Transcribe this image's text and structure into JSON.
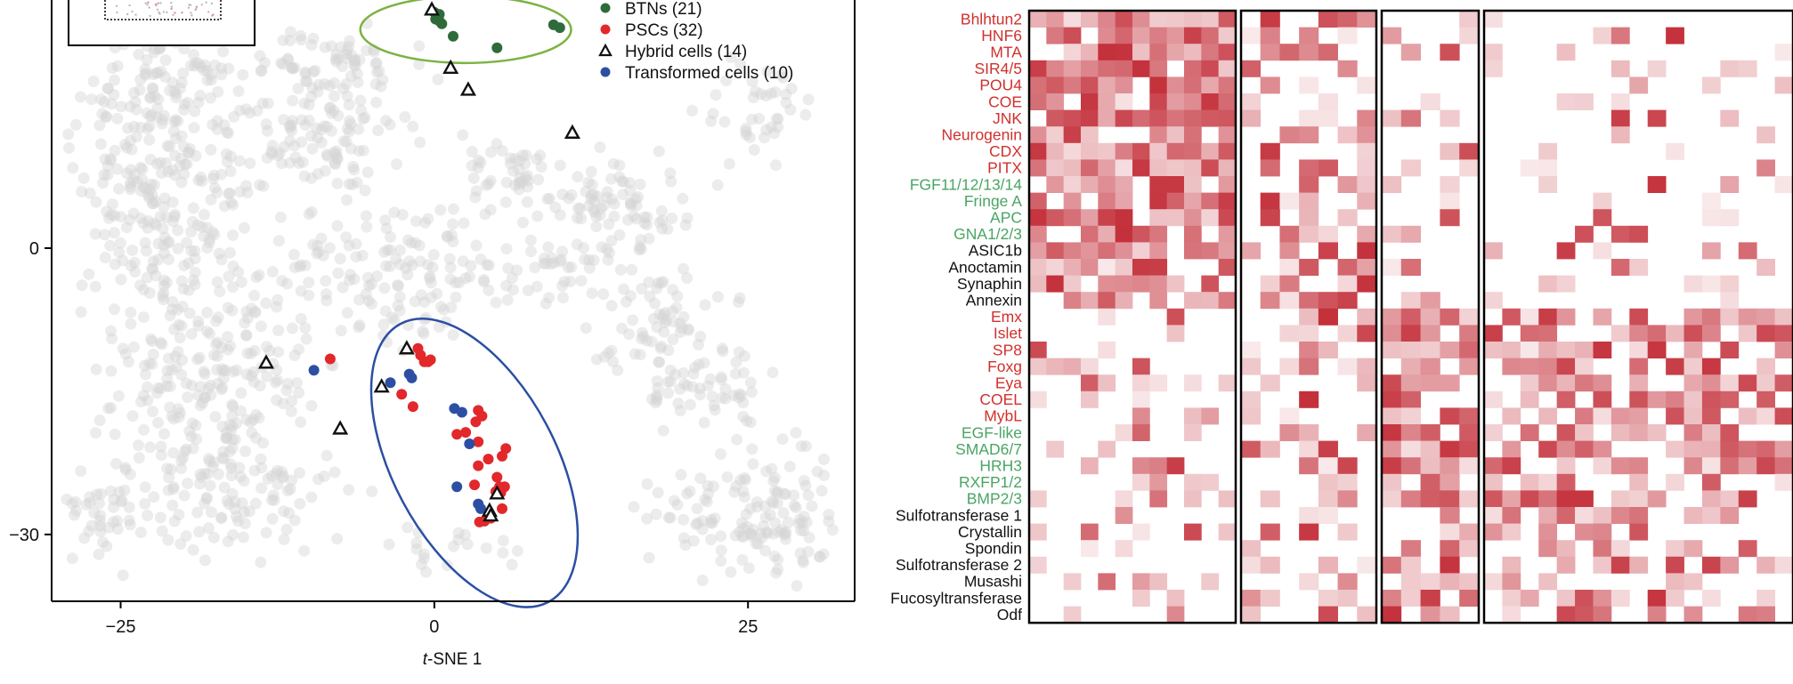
{
  "colors": {
    "btn": "#2e6b3a",
    "psc": "#e2282b",
    "transformed": "#2c4fa3",
    "background_cells": "#d4d4d4",
    "green_ellipse": "#7cb342",
    "blue_ellipse": "#2c4fa3",
    "heat_max": "#c0242f",
    "label_red": "#d0312d",
    "label_green": "#4aa564",
    "label_black": "#111111"
  },
  "chart_data": [
    {
      "type": "scatter",
      "xlabel": "t-SNE 1",
      "ylabel": "",
      "xlim": [
        -30.5,
        33.5
      ],
      "ylim": [
        -37,
        26
      ],
      "xticks": [
        -25,
        0,
        25
      ],
      "xtick_labels": [
        "−25",
        "0",
        "25"
      ],
      "yticks": [
        0,
        -30
      ],
      "ytick_labels": [
        "0",
        "−30"
      ],
      "grid": false,
      "legend_position": "top-right",
      "legend": [
        {
          "label": "BTNs (21)",
          "marker": "circle",
          "color": "#2e6b3a"
        },
        {
          "label": "PSCs (32)",
          "marker": "circle",
          "color": "#e2282b"
        },
        {
          "label": "Hybrid cells (14)",
          "marker": "triangle-open",
          "color": "#111111"
        },
        {
          "label": "Transformed cells (10)",
          "marker": "circle",
          "color": "#2c4fa3"
        }
      ],
      "ellipses": [
        {
          "group": "BTNs",
          "cx": 2.5,
          "cy": 22.9,
          "rx": 8.4,
          "ry": 3.5,
          "angle": 0,
          "color": "#7cb342"
        },
        {
          "group": "Transformed/PSCs",
          "cx": 3.2,
          "cy": -22.5,
          "rx": 6.5,
          "ry": 16.5,
          "angle": -28,
          "color": "#2c4fa3"
        }
      ],
      "series": [
        {
          "name": "BTNs (21)",
          "points": [
            [
              0.0,
              24.7
            ],
            [
              0.4,
              24.5
            ],
            [
              0.1,
              24.0
            ],
            [
              0.4,
              23.8
            ],
            [
              1.5,
              22.2
            ],
            [
              5.0,
              21.0
            ],
            [
              9.5,
              23.4
            ],
            [
              10.0,
              23.1
            ],
            [
              0.6,
              23.5
            ]
          ]
        },
        {
          "name": "PSCs (32)",
          "points": [
            [
              -1.3,
              -10.5
            ],
            [
              -1.1,
              -11.2
            ],
            [
              -0.8,
              -11.9
            ],
            [
              -0.3,
              -11.7
            ],
            [
              -0.5,
              -11.9
            ],
            [
              -8.3,
              -11.6
            ],
            [
              -2.6,
              -15.3
            ],
            [
              -1.7,
              -16.6
            ],
            [
              3.5,
              -17.0
            ],
            [
              3.8,
              -17.6
            ],
            [
              3.3,
              -18.2
            ],
            [
              2.5,
              -19.3
            ],
            [
              1.8,
              -19.5
            ],
            [
              3.5,
              -20.3
            ],
            [
              4.3,
              -22.1
            ],
            [
              5.4,
              -21.8
            ],
            [
              5.7,
              -21.0
            ],
            [
              3.5,
              -22.8
            ],
            [
              3.2,
              -24.8
            ],
            [
              5.0,
              -24.0
            ],
            [
              5.2,
              -25.0
            ],
            [
              5.3,
              -25.6
            ],
            [
              4.9,
              -25.5
            ],
            [
              5.4,
              -27.3
            ],
            [
              4.0,
              -28.6
            ],
            [
              4.5,
              -28.3
            ],
            [
              3.6,
              -28.7
            ],
            [
              5.6,
              -25.0
            ]
          ]
        },
        {
          "name": "Hybrid cells (14)",
          "points": [
            [
              -0.2,
              25.0
            ],
            [
              1.3,
              18.9
            ],
            [
              2.7,
              16.6
            ],
            [
              11.0,
              12.1
            ],
            [
              -2.2,
              -10.5
            ],
            [
              -4.2,
              -14.5
            ],
            [
              -13.4,
              -12.0
            ],
            [
              -7.5,
              -18.9
            ],
            [
              5.0,
              -25.7
            ],
            [
              4.4,
              -27.5
            ],
            [
              4.5,
              -28.0
            ]
          ]
        },
        {
          "name": "Transformed cells (10)",
          "points": [
            [
              -9.6,
              -12.8
            ],
            [
              -3.5,
              -14.1
            ],
            [
              -2.0,
              -13.2
            ],
            [
              -1.8,
              -13.6
            ],
            [
              1.6,
              -16.8
            ],
            [
              2.2,
              -17.2
            ],
            [
              2.8,
              -20.5
            ],
            [
              1.8,
              -25.0
            ],
            [
              3.5,
              -26.8
            ],
            [
              3.7,
              -27.3
            ]
          ]
        }
      ]
    },
    {
      "type": "heatmap",
      "row_labels": [
        "Bhlhtun2",
        "HNF6",
        "MTA",
        "SIR4/5",
        "POU4",
        "COE",
        "JNK",
        "Neurogenin",
        "CDX",
        "PITX",
        "FGF11/12/13/14",
        "Fringe A",
        "APC",
        "GNA1/2/3",
        "ASIC1b",
        "Anoctamin",
        "Synaphin",
        "Annexin",
        "Emx",
        "Islet",
        "SP8",
        "Foxg",
        "Eya",
        "COEL",
        "MybL",
        "EGF-like",
        "SMAD6/7",
        "HRH3",
        "RXFP1/2",
        "BMP2/3",
        "Sulfotransferase 1",
        "Crystallin",
        "Spondin",
        "Sulfotransferase 2",
        "Musashi",
        "Fucosyltransferase",
        "Odf"
      ],
      "row_label_colors": [
        "red",
        "red",
        "red",
        "red",
        "red",
        "red",
        "red",
        "red",
        "red",
        "red",
        "green",
        "green",
        "green",
        "green",
        "black",
        "black",
        "black",
        "black",
        "red",
        "red",
        "red",
        "red",
        "red",
        "red",
        "red",
        "green",
        "green",
        "green",
        "green",
        "green",
        "black",
        "black",
        "black",
        "black",
        "black",
        "black",
        "black"
      ],
      "column_groups": [
        {
          "name": "",
          "columns": 12
        },
        {
          "name": "",
          "columns": 7
        },
        {
          "name": "",
          "columns": 5
        },
        {
          "name": "",
          "columns": 17
        }
      ],
      "value_range": [
        0,
        1
      ],
      "colormap": "white-to-red",
      "expression_block_pattern": {
        "rows_0_17": [
          0.75,
          0.35,
          0.08,
          0.06
        ],
        "rows_18_29": [
          0.12,
          0.28,
          0.62,
          0.58
        ],
        "rows_30_36": [
          0.1,
          0.18,
          0.4,
          0.35
        ]
      }
    }
  ]
}
